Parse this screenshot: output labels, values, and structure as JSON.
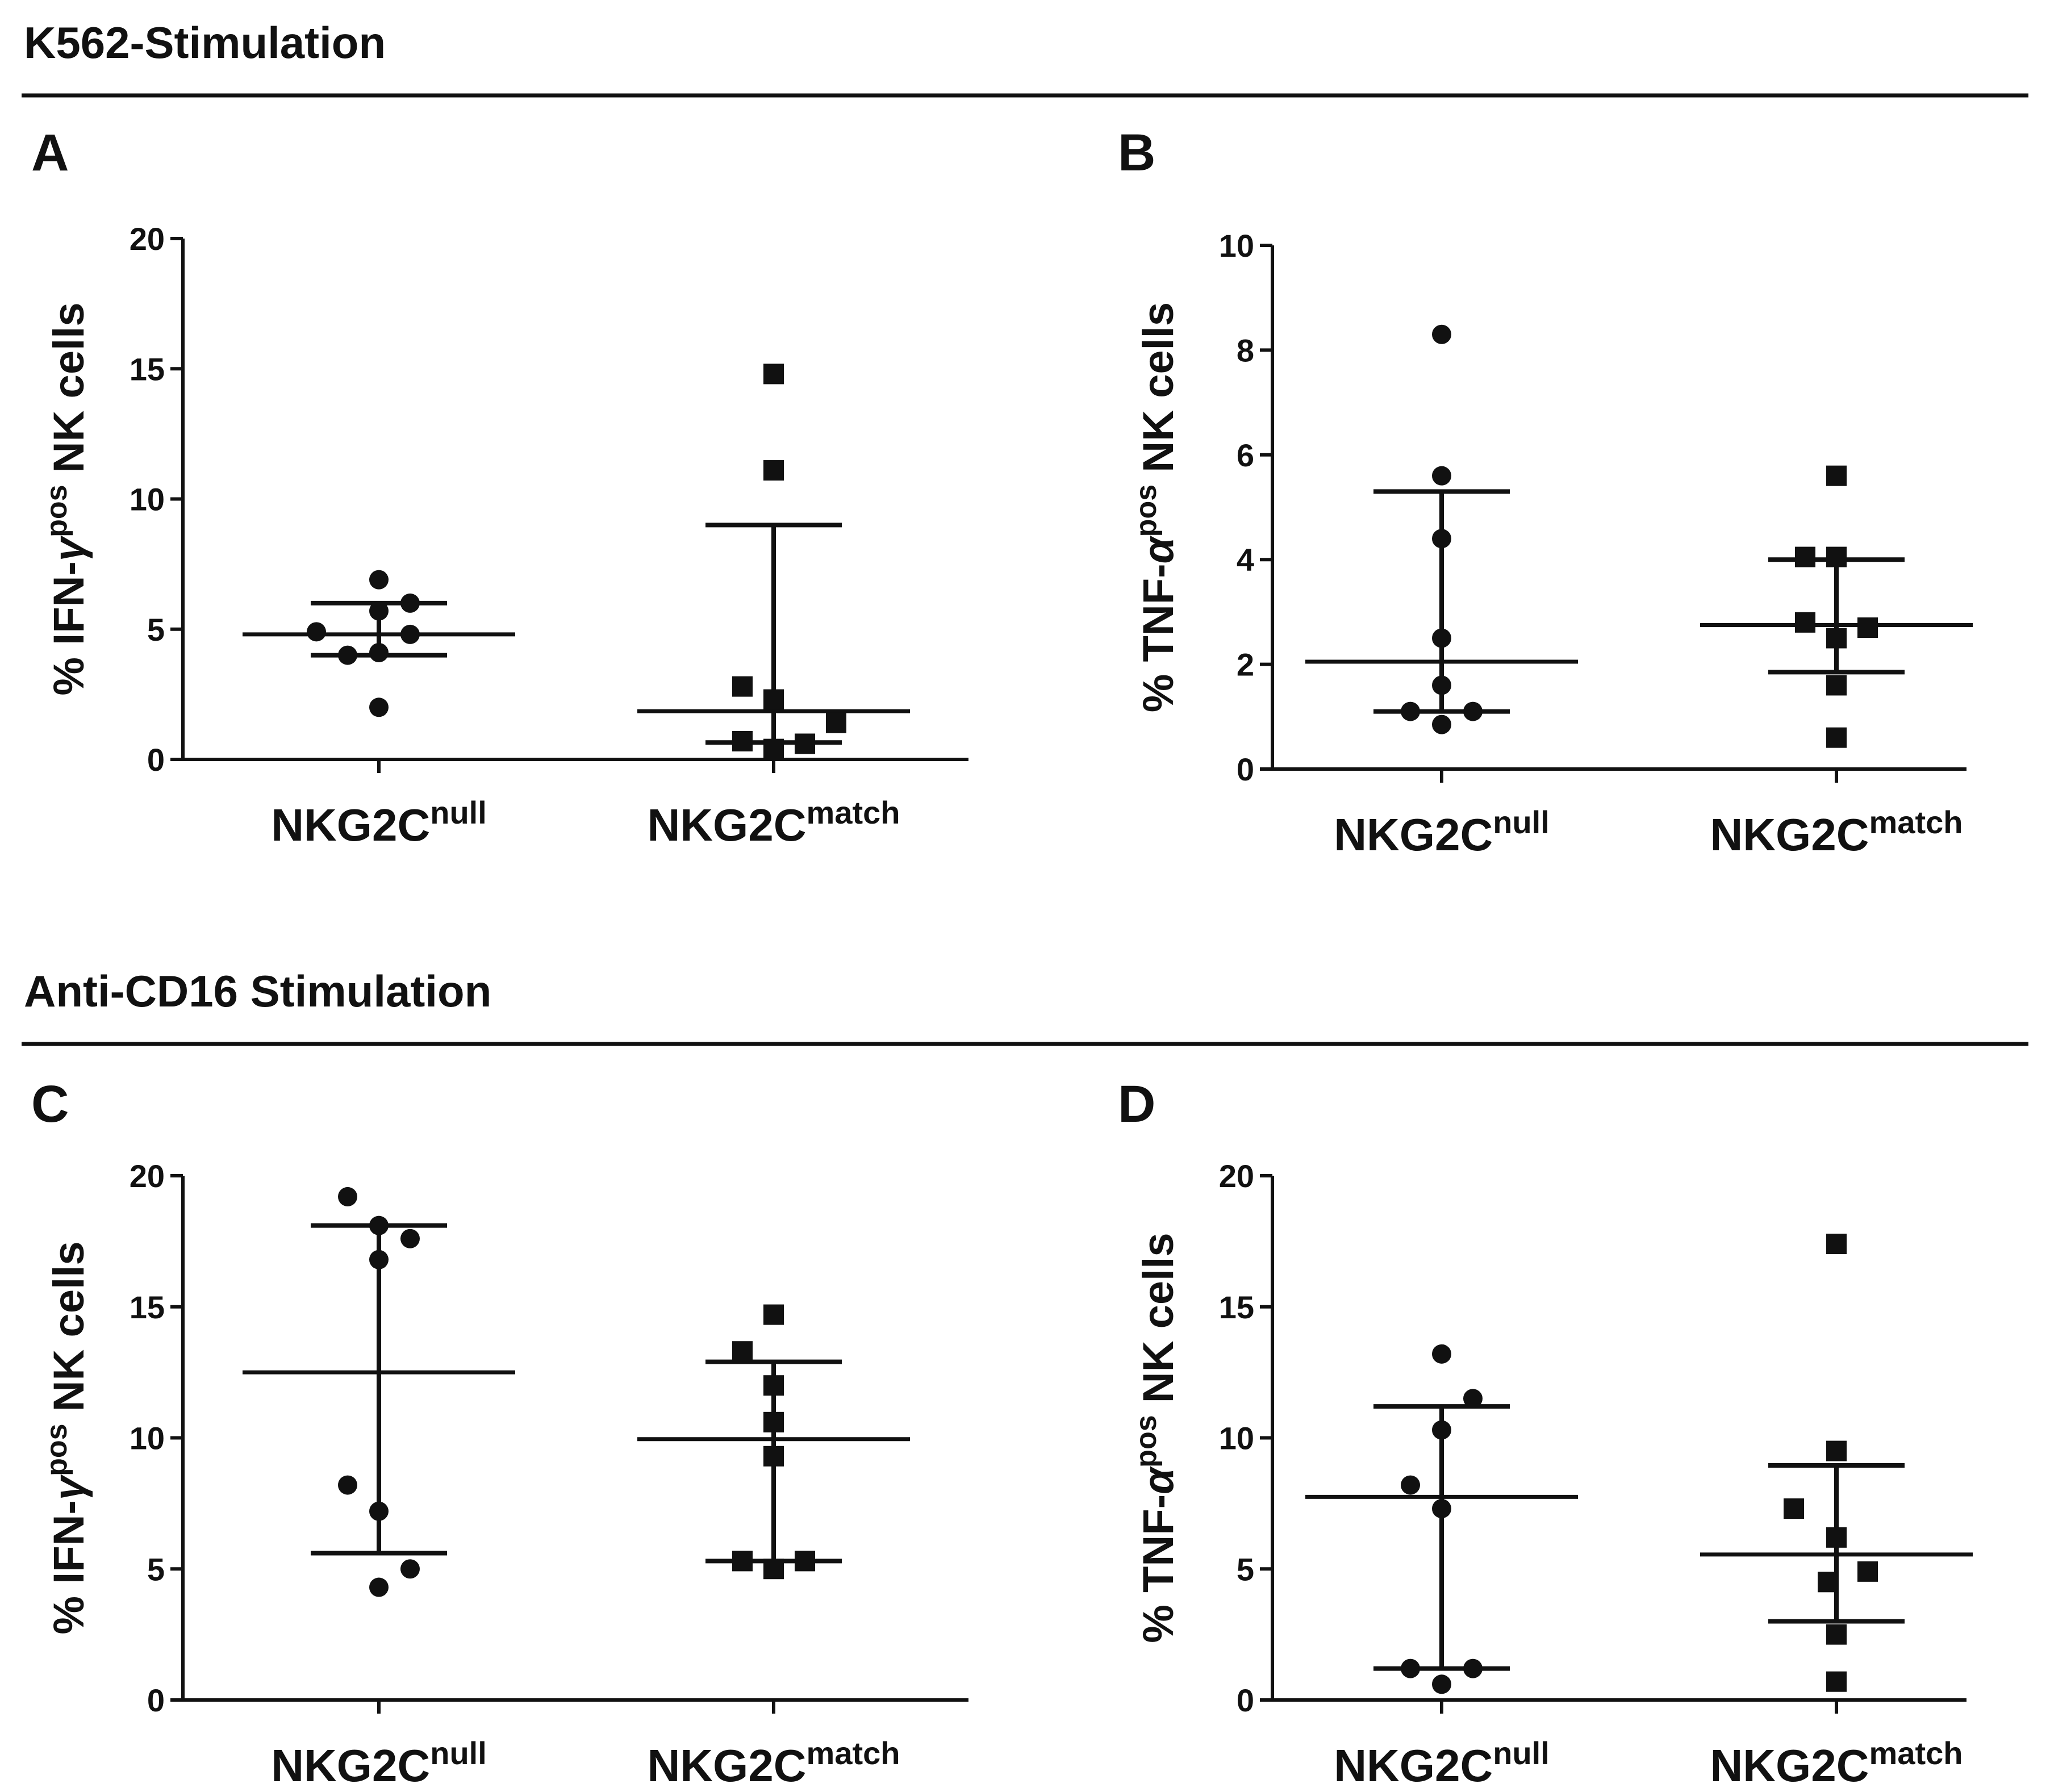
{
  "sections": [
    {
      "title": "K562-Stimulation",
      "panels": [
        0,
        1
      ]
    },
    {
      "title": "Anti-CD16 Stimulation",
      "panels": [
        2,
        3
      ]
    }
  ],
  "chart_data": [
    {
      "panel": "A",
      "type": "scatter",
      "ylabel": {
        "prefix": "% IFN-",
        "greek": "γ",
        "sup": "pos",
        "suffix": " NK cells"
      },
      "ylim": [
        0,
        20
      ],
      "yticks": [
        0,
        5,
        10,
        15,
        20
      ],
      "categories": [
        {
          "base": "NKG2C",
          "sup": "null",
          "marker": "circle"
        },
        {
          "base": "NKG2C",
          "sup": "match",
          "marker": "square"
        }
      ],
      "series": [
        {
          "name": "NKG2Cnull",
          "values": [
            6.9,
            4.9,
            4.0,
            5.7,
            4.1,
            6.0,
            4.8,
            2.0
          ],
          "median": 4.8,
          "q1": 4.0,
          "q3": 6.0
        },
        {
          "name": "NKG2Cmatch",
          "values": [
            14.8,
            11.1,
            2.8,
            2.3,
            0.7,
            0.4,
            0.6,
            1.4
          ],
          "median": 1.85,
          "q1": 0.65,
          "q3": 9.0
        }
      ]
    },
    {
      "panel": "B",
      "type": "scatter",
      "ylabel": {
        "prefix": "% TNF-",
        "greek": "α",
        "sup": "pos",
        "suffix": " NK cells"
      },
      "ylim": [
        0,
        10
      ],
      "yticks": [
        0,
        2,
        4,
        6,
        8,
        10
      ],
      "categories": [
        {
          "base": "NKG2C",
          "sup": "null",
          "marker": "circle"
        },
        {
          "base": "NKG2C",
          "sup": "match",
          "marker": "square"
        }
      ],
      "series": [
        {
          "name": "NKG2Cnull",
          "values": [
            8.3,
            5.6,
            4.4,
            2.5,
            1.6,
            1.1,
            1.1,
            0.85
          ],
          "median": 2.05,
          "q1": 1.1,
          "q3": 5.3
        },
        {
          "name": "NKG2Cmatch",
          "values": [
            5.6,
            4.05,
            4.05,
            2.8,
            2.5,
            2.7,
            1.6,
            0.6
          ],
          "median": 2.75,
          "q1": 1.85,
          "q3": 4.0
        }
      ]
    },
    {
      "panel": "C",
      "type": "scatter",
      "ylabel": {
        "prefix": "% IFN-",
        "greek": "γ",
        "sup": "pos",
        "suffix": " NK cells"
      },
      "ylim": [
        0,
        20
      ],
      "yticks": [
        0,
        5,
        10,
        15,
        20
      ],
      "categories": [
        {
          "base": "NKG2C",
          "sup": "null",
          "marker": "circle"
        },
        {
          "base": "NKG2C",
          "sup": "match",
          "marker": "square"
        }
      ],
      "series": [
        {
          "name": "NKG2Cnull",
          "values": [
            19.2,
            18.1,
            17.6,
            16.8,
            8.2,
            7.2,
            5.0,
            4.3
          ],
          "median": 12.5,
          "q1": 5.6,
          "q3": 18.1
        },
        {
          "name": "NKG2Cmatch",
          "values": [
            14.7,
            13.3,
            12.0,
            10.6,
            9.3,
            5.3,
            5.3,
            5.0
          ],
          "median": 9.95,
          "q1": 5.3,
          "q3": 12.9
        }
      ]
    },
    {
      "panel": "D",
      "type": "scatter",
      "ylabel": {
        "prefix": "% TNF-",
        "greek": "α",
        "sup": "pos",
        "suffix": " NK cells"
      },
      "ylim": [
        0,
        20
      ],
      "yticks": [
        0,
        5,
        10,
        15,
        20
      ],
      "categories": [
        {
          "base": "NKG2C",
          "sup": "null",
          "marker": "circle"
        },
        {
          "base": "NKG2C",
          "sup": "match",
          "marker": "square"
        }
      ],
      "series": [
        {
          "name": "NKG2Cnull",
          "values": [
            13.2,
            11.5,
            10.3,
            8.2,
            7.3,
            1.2,
            1.2,
            0.6
          ],
          "median": 7.75,
          "q1": 1.2,
          "q3": 11.2
        },
        {
          "name": "NKG2Cmatch",
          "values": [
            17.4,
            9.5,
            7.3,
            6.2,
            4.9,
            4.5,
            2.5,
            0.7
          ],
          "median": 5.55,
          "q1": 3.0,
          "q3": 8.95
        }
      ]
    }
  ]
}
